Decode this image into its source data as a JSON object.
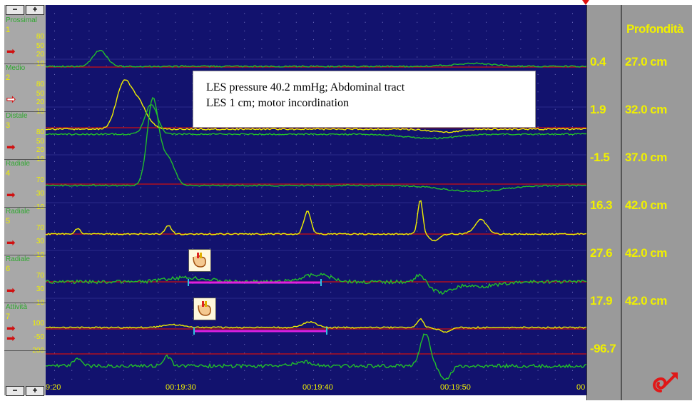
{
  "channels": [
    {
      "name": "Prossimal",
      "num": "1",
      "ticks": [
        "80",
        "50",
        "20",
        "-10"
      ],
      "arrow": "filled",
      "value": "0.4",
      "depth": "27.0 cm"
    },
    {
      "name": "Medio",
      "num": "2",
      "ticks": [
        "80",
        "50",
        "20",
        "-10"
      ],
      "arrow": "hollow",
      "value": "1.9",
      "depth": "32.0 cm"
    },
    {
      "name": "Distale",
      "num": "3",
      "ticks": [
        "80",
        "50",
        "20",
        "-10"
      ],
      "arrow": "filled",
      "value": "-1.5",
      "depth": "37.0 cm"
    },
    {
      "name": "Radiale",
      "num": "4",
      "ticks": [
        "70",
        "30",
        "-10"
      ],
      "arrow": "filled",
      "value": "16.3",
      "depth": "42.0 cm"
    },
    {
      "name": "Radiale",
      "num": "5",
      "ticks": [
        "70",
        "30",
        "-10"
      ],
      "arrow": "filled",
      "value": "27.6",
      "depth": "42.0 cm"
    },
    {
      "name": "Radiale",
      "num": "6",
      "ticks": [
        "70",
        "30",
        "-10"
      ],
      "arrow": "filled",
      "value": "17.9",
      "depth": "42.0 cm"
    },
    {
      "name": "Attività",
      "num": "7",
      "ticks": [
        "100",
        "-50",
        "-200"
      ],
      "arrow": "filled",
      "value": "-96.7",
      "depth": ""
    }
  ],
  "depth_header": "Profondità",
  "annotation": {
    "line1": "LES pressure 40.2 mmHg; Abdominal tract",
    "line2": "LES 1 cm; motor incordination"
  },
  "time_axis": [
    "9:20",
    "00:19:30",
    "00:19:40",
    "00:19:50",
    "00"
  ],
  "zoom": {
    "minus": "−",
    "plus": "+"
  },
  "colors": {
    "plot_bg": "#12126e",
    "trace_yellow": "#f0f000",
    "trace_green": "#22c02a",
    "baseline_red": "#d01010",
    "swallow_bar": "#e020e0"
  }
}
